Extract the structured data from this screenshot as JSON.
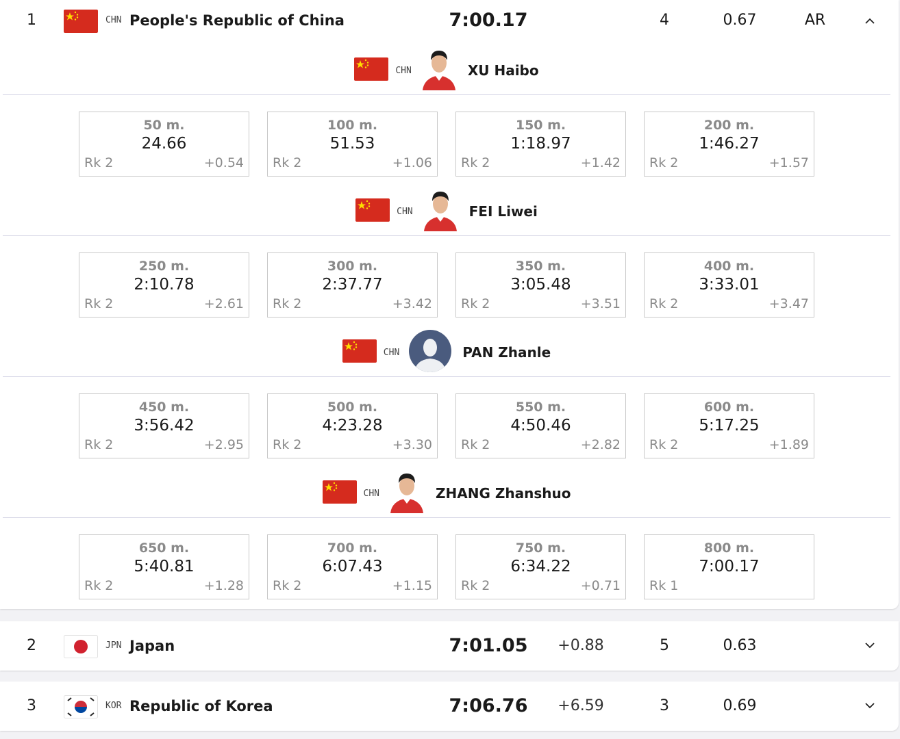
{
  "teams": [
    {
      "rank": "1",
      "code": "CHN",
      "name": "People's Republic of China",
      "time": "7:00.17",
      "lane": "4",
      "reaction": "0.67",
      "record": "AR",
      "swimmers": [
        {
          "code": "CHN",
          "name": "XU Haibo",
          "splits": [
            {
              "distance": "50 m.",
              "time": "24.66",
              "rank": "Rk 2",
              "diff": "+0.54"
            },
            {
              "distance": "100 m.",
              "time": "51.53",
              "rank": "Rk 2",
              "diff": "+1.06"
            },
            {
              "distance": "150 m.",
              "time": "1:18.97",
              "rank": "Rk 2",
              "diff": "+1.42"
            },
            {
              "distance": "200 m.",
              "time": "1:46.27",
              "rank": "Rk 2",
              "diff": "+1.57"
            }
          ]
        },
        {
          "code": "CHN",
          "name": "FEI Liwei",
          "splits": [
            {
              "distance": "250 m.",
              "time": "2:10.78",
              "rank": "Rk 2",
              "diff": "+2.61"
            },
            {
              "distance": "300 m.",
              "time": "2:37.77",
              "rank": "Rk 2",
              "diff": "+3.42"
            },
            {
              "distance": "350 m.",
              "time": "3:05.48",
              "rank": "Rk 2",
              "diff": "+3.51"
            },
            {
              "distance": "400 m.",
              "time": "3:33.01",
              "rank": "Rk 2",
              "diff": "+3.47"
            }
          ]
        },
        {
          "code": "CHN",
          "name": "PAN Zhanle",
          "splits": [
            {
              "distance": "450 m.",
              "time": "3:56.42",
              "rank": "Rk 2",
              "diff": "+2.95"
            },
            {
              "distance": "500 m.",
              "time": "4:23.28",
              "rank": "Rk 2",
              "diff": "+3.30"
            },
            {
              "distance": "550 m.",
              "time": "4:50.46",
              "rank": "Rk 2",
              "diff": "+2.82"
            },
            {
              "distance": "600 m.",
              "time": "5:17.25",
              "rank": "Rk 2",
              "diff": "+1.89"
            }
          ]
        },
        {
          "code": "CHN",
          "name": "ZHANG Zhanshuo",
          "splits": [
            {
              "distance": "650 m.",
              "time": "5:40.81",
              "rank": "Rk 2",
              "diff": "+1.28"
            },
            {
              "distance": "700 m.",
              "time": "6:07.43",
              "rank": "Rk 2",
              "diff": "+1.15"
            },
            {
              "distance": "750 m.",
              "time": "6:34.22",
              "rank": "Rk 2",
              "diff": "+0.71"
            },
            {
              "distance": "800 m.",
              "time": "7:00.17",
              "rank": "Rk 1"
            }
          ]
        }
      ]
    },
    {
      "rank": "2",
      "code": "JPN",
      "name": "Japan",
      "time": "7:01.05",
      "diff": "+0.88",
      "lane": "5",
      "reaction": "0.63"
    },
    {
      "rank": "3",
      "code": "KOR",
      "name": "Republic of Korea",
      "time": "7:06.76",
      "diff": "+6.59",
      "lane": "3",
      "reaction": "0.69"
    }
  ]
}
